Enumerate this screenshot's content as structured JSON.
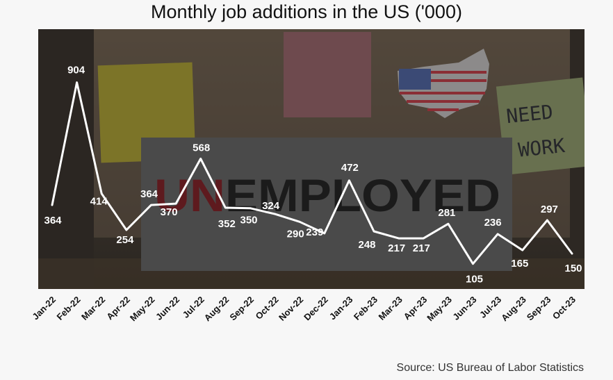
{
  "chart_data": {
    "type": "line",
    "title": "Monthly job additions in the US ('000)",
    "xlabel": "",
    "ylabel": "",
    "categories": [
      "Jan-22",
      "Feb-22",
      "Mar-22",
      "Apr-22",
      "May-22",
      "Jun-22",
      "Jul-22",
      "Aug-22",
      "Sep-22",
      "Oct-22",
      "Nov-22",
      "Dec-22",
      "Jan-23",
      "Feb-23",
      "Mar-23",
      "Apr-23",
      "May-23",
      "Jun-23",
      "Jul-23",
      "Aug-23",
      "Sep-23",
      "Oct-23"
    ],
    "series": [
      {
        "values": [
          364,
          904,
          414,
          254,
          364,
          370,
          568,
          352,
          350,
          324,
          290,
          239,
          472,
          248,
          217,
          217,
          281,
          105,
          236,
          165,
          297,
          150
        ]
      }
    ],
    "data_labels": [
      "364",
      "904",
      "414",
      "254",
      "364",
      "370",
      "568",
      "352",
      "350",
      "324",
      "290",
      "239",
      "472",
      "248",
      "217",
      "217",
      "281",
      "105",
      "236",
      "165",
      "297",
      "150"
    ],
    "ylim": [
      0,
      1000
    ],
    "grid": false,
    "legend": "none",
    "line_color": "#ffffff",
    "label_color": "#ffffff",
    "background_image": "photo-unemployed-sign-need-work-us-flag",
    "photo_text": {
      "sign_red": "UN",
      "sign_dark": "EMPLOYED",
      "note_line1": "NEED",
      "note_line2": "WORK"
    }
  },
  "source": "Source: US Bureau of Labor Statistics"
}
